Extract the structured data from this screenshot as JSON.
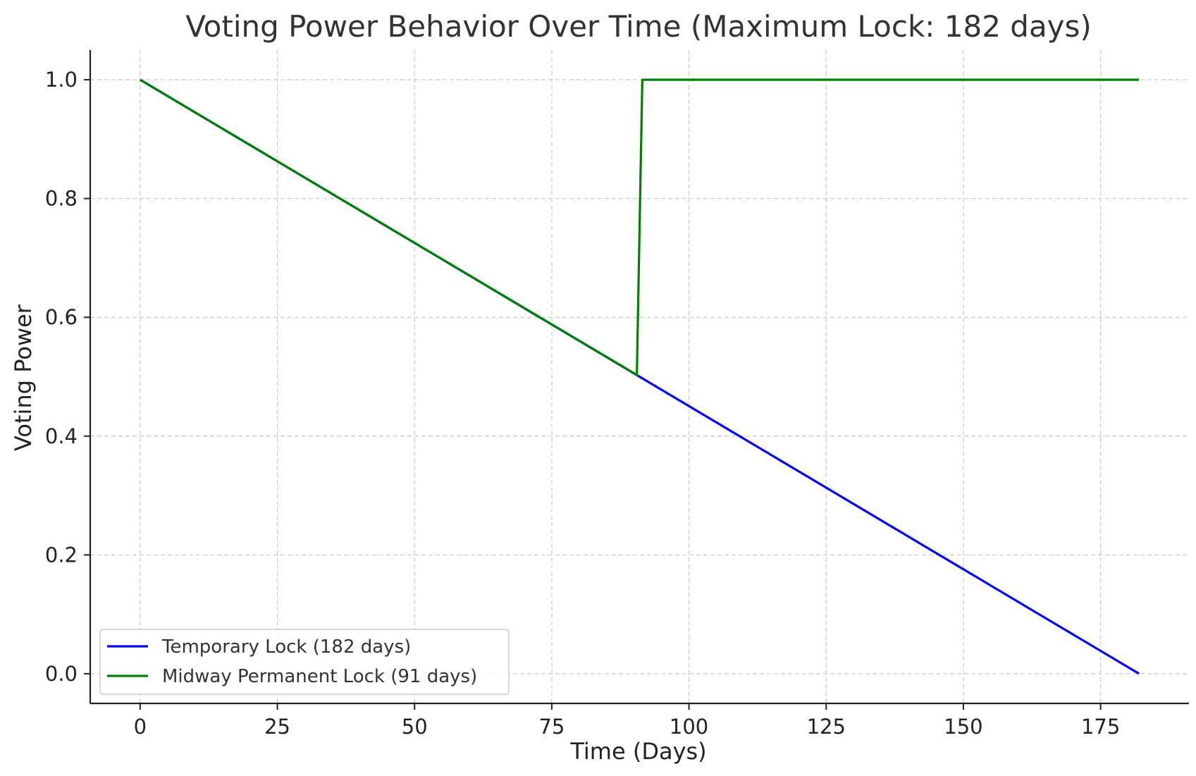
{
  "chart_data": {
    "type": "line",
    "title": "Voting Power Behavior Over Time (Maximum Lock: 182 days)",
    "xlabel": "Time (Days)",
    "ylabel": "Voting Power",
    "xlim": [
      -9.1,
      191.1
    ],
    "ylim": [
      -0.05,
      1.05
    ],
    "xticks": [
      0,
      25,
      50,
      75,
      100,
      125,
      150,
      175
    ],
    "xtick_labels": [
      "0",
      "25",
      "50",
      "75",
      "100",
      "125",
      "150",
      "175"
    ],
    "yticks": [
      0.0,
      0.2,
      0.4,
      0.6,
      0.8,
      1.0
    ],
    "ytick_labels": [
      "0.0",
      "0.2",
      "0.4",
      "0.6",
      "0.8",
      "1.0"
    ],
    "grid": true,
    "legend_position": "lower-left",
    "series": [
      {
        "name": "Temporary Lock (182 days)",
        "color": "#0000ff",
        "x": [
          0,
          182
        ],
        "y": [
          1.0,
          0.0
        ]
      },
      {
        "name": "Midway Permanent Lock (91 days)",
        "color": "#008000",
        "x": [
          0,
          90.5,
          91.5,
          182
        ],
        "y": [
          1.0,
          0.503,
          1.0,
          1.0
        ]
      }
    ]
  }
}
